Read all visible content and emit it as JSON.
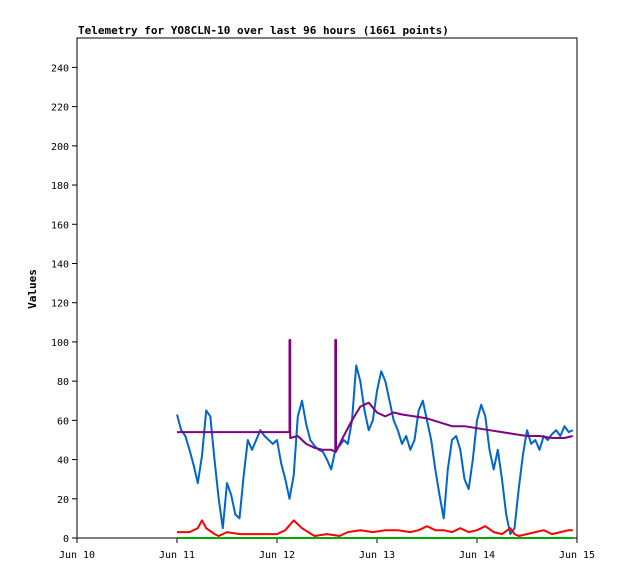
{
  "chart_data": {
    "type": "line",
    "title": "Telemetry for YO8CLN-10 over last 96 hours (1661 points)",
    "xlabel": "",
    "ylabel": "Values",
    "xlim": [
      "2024-06-10",
      "2024-06-15"
    ],
    "ylim": [
      0,
      255
    ],
    "x_ticks": [
      "Jun 10",
      "Jun 11",
      "Jun 12",
      "Jun 13",
      "Jun 14",
      "Jun 15"
    ],
    "y_ticks": [
      0,
      20,
      40,
      60,
      80,
      100,
      120,
      140,
      160,
      180,
      200,
      220,
      240
    ],
    "grid": false,
    "legend": "none",
    "series": [
      {
        "color": "#0066cc",
        "points": [
          [
            "2024-06-11T00:00",
            63
          ],
          [
            "2024-06-11T01:00",
            55
          ],
          [
            "2024-06-11T02:00",
            52
          ],
          [
            "2024-06-11T03:00",
            45
          ],
          [
            "2024-06-11T04:00",
            37
          ],
          [
            "2024-06-11T05:00",
            28
          ],
          [
            "2024-06-11T06:00",
            42
          ],
          [
            "2024-06-11T07:00",
            65
          ],
          [
            "2024-06-11T08:00",
            62
          ],
          [
            "2024-06-11T09:00",
            40
          ],
          [
            "2024-06-11T10:00",
            20
          ],
          [
            "2024-06-11T11:00",
            5
          ],
          [
            "2024-06-11T12:00",
            28
          ],
          [
            "2024-06-11T13:00",
            22
          ],
          [
            "2024-06-11T14:00",
            12
          ],
          [
            "2024-06-11T15:00",
            10
          ],
          [
            "2024-06-11T16:00",
            32
          ],
          [
            "2024-06-11T17:00",
            50
          ],
          [
            "2024-06-11T18:00",
            45
          ],
          [
            "2024-06-11T19:00",
            50
          ],
          [
            "2024-06-11T20:00",
            55
          ],
          [
            "2024-06-11T21:00",
            52
          ],
          [
            "2024-06-11T22:00",
            50
          ],
          [
            "2024-06-11T23:00",
            48
          ],
          [
            "2024-06-12T00:00",
            50
          ],
          [
            "2024-06-12T01:00",
            38
          ],
          [
            "2024-06-12T02:00",
            30
          ],
          [
            "2024-06-12T03:00",
            20
          ],
          [
            "2024-06-12T04:00",
            32
          ],
          [
            "2024-06-12T05:00",
            62
          ],
          [
            "2024-06-12T06:00",
            70
          ],
          [
            "2024-06-12T07:00",
            58
          ],
          [
            "2024-06-12T08:00",
            50
          ],
          [
            "2024-06-12T09:00",
            47
          ],
          [
            "2024-06-12T10:00",
            45
          ],
          [
            "2024-06-12T11:00",
            44
          ],
          [
            "2024-06-12T12:00",
            40
          ],
          [
            "2024-06-12T13:00",
            35
          ],
          [
            "2024-06-12T14:00",
            45
          ],
          [
            "2024-06-12T15:00",
            47
          ],
          [
            "2024-06-12T16:00",
            50
          ],
          [
            "2024-06-12T17:00",
            48
          ],
          [
            "2024-06-12T18:00",
            60
          ],
          [
            "2024-06-12T19:00",
            88
          ],
          [
            "2024-06-12T20:00",
            80
          ],
          [
            "2024-06-12T21:00",
            65
          ],
          [
            "2024-06-12T22:00",
            55
          ],
          [
            "2024-06-12T23:00",
            60
          ],
          [
            "2024-06-13T00:00",
            75
          ],
          [
            "2024-06-13T01:00",
            85
          ],
          [
            "2024-06-13T02:00",
            80
          ],
          [
            "2024-06-13T03:00",
            70
          ],
          [
            "2024-06-13T04:00",
            60
          ],
          [
            "2024-06-13T05:00",
            55
          ],
          [
            "2024-06-13T06:00",
            48
          ],
          [
            "2024-06-13T07:00",
            52
          ],
          [
            "2024-06-13T08:00",
            45
          ],
          [
            "2024-06-13T09:00",
            50
          ],
          [
            "2024-06-13T10:00",
            65
          ],
          [
            "2024-06-13T11:00",
            70
          ],
          [
            "2024-06-13T12:00",
            60
          ],
          [
            "2024-06-13T13:00",
            50
          ],
          [
            "2024-06-13T14:00",
            35
          ],
          [
            "2024-06-13T15:00",
            22
          ],
          [
            "2024-06-13T16:00",
            10
          ],
          [
            "2024-06-13T17:00",
            35
          ],
          [
            "2024-06-13T18:00",
            50
          ],
          [
            "2024-06-13T19:00",
            52
          ],
          [
            "2024-06-13T20:00",
            45
          ],
          [
            "2024-06-13T21:00",
            30
          ],
          [
            "2024-06-13T22:00",
            25
          ],
          [
            "2024-06-13T23:00",
            40
          ],
          [
            "2024-06-14T00:00",
            60
          ],
          [
            "2024-06-14T01:00",
            68
          ],
          [
            "2024-06-14T02:00",
            62
          ],
          [
            "2024-06-14T03:00",
            45
          ],
          [
            "2024-06-14T04:00",
            35
          ],
          [
            "2024-06-14T05:00",
            45
          ],
          [
            "2024-06-14T06:00",
            30
          ],
          [
            "2024-06-14T07:00",
            12
          ],
          [
            "2024-06-14T08:00",
            2
          ],
          [
            "2024-06-14T09:00",
            5
          ],
          [
            "2024-06-14T10:00",
            25
          ],
          [
            "2024-06-14T11:00",
            42
          ],
          [
            "2024-06-14T12:00",
            55
          ],
          [
            "2024-06-14T13:00",
            48
          ],
          [
            "2024-06-14T14:00",
            50
          ],
          [
            "2024-06-14T15:00",
            45
          ],
          [
            "2024-06-14T16:00",
            52
          ],
          [
            "2024-06-14T17:00",
            50
          ],
          [
            "2024-06-14T18:00",
            53
          ],
          [
            "2024-06-14T19:00",
            55
          ],
          [
            "2024-06-14T20:00",
            52
          ],
          [
            "2024-06-14T21:00",
            57
          ],
          [
            "2024-06-14T22:00",
            54
          ],
          [
            "2024-06-14T23:00",
            55
          ]
        ]
      },
      {
        "color": "#800080",
        "points": [
          [
            "2024-06-11T00:00",
            54
          ],
          [
            "2024-06-12T03:00",
            54
          ],
          [
            "2024-06-12T03:00",
            101
          ],
          [
            "2024-06-12T03:10",
            101
          ],
          [
            "2024-06-12T03:10",
            51
          ],
          [
            "2024-06-12T05:00",
            52
          ],
          [
            "2024-06-12T07:00",
            48
          ],
          [
            "2024-06-12T09:00",
            46
          ],
          [
            "2024-06-12T11:00",
            45
          ],
          [
            "2024-06-12T13:00",
            45
          ],
          [
            "2024-06-12T14:00",
            44
          ],
          [
            "2024-06-12T14:00",
            101
          ],
          [
            "2024-06-12T14:10",
            101
          ],
          [
            "2024-06-12T14:10",
            44
          ],
          [
            "2024-06-12T16:00",
            52
          ],
          [
            "2024-06-12T18:00",
            60
          ],
          [
            "2024-06-12T20:00",
            67
          ],
          [
            "2024-06-12T22:00",
            69
          ],
          [
            "2024-06-13T00:00",
            64
          ],
          [
            "2024-06-13T02:00",
            62
          ],
          [
            "2024-06-13T04:00",
            64
          ],
          [
            "2024-06-13T06:00",
            63
          ],
          [
            "2024-06-13T09:00",
            62
          ],
          [
            "2024-06-13T12:00",
            61
          ],
          [
            "2024-06-13T15:00",
            59
          ],
          [
            "2024-06-13T18:00",
            57
          ],
          [
            "2024-06-13T21:00",
            57
          ],
          [
            "2024-06-14T00:00",
            56
          ],
          [
            "2024-06-14T03:00",
            55
          ],
          [
            "2024-06-14T06:00",
            54
          ],
          [
            "2024-06-14T09:00",
            53
          ],
          [
            "2024-06-14T12:00",
            52
          ],
          [
            "2024-06-14T15:00",
            52
          ],
          [
            "2024-06-14T18:00",
            51
          ],
          [
            "2024-06-14T21:00",
            51
          ],
          [
            "2024-06-14T23:00",
            52
          ]
        ]
      },
      {
        "color": "#ff0000",
        "points": [
          [
            "2024-06-11T00:00",
            3
          ],
          [
            "2024-06-11T03:00",
            3
          ],
          [
            "2024-06-11T05:00",
            5
          ],
          [
            "2024-06-11T06:00",
            9
          ],
          [
            "2024-06-11T07:00",
            5
          ],
          [
            "2024-06-11T09:00",
            2
          ],
          [
            "2024-06-11T10:00",
            1
          ],
          [
            "2024-06-11T12:00",
            3
          ],
          [
            "2024-06-11T15:00",
            2
          ],
          [
            "2024-06-11T18:00",
            2
          ],
          [
            "2024-06-11T21:00",
            2
          ],
          [
            "2024-06-12T00:00",
            2
          ],
          [
            "2024-06-12T02:00",
            4
          ],
          [
            "2024-06-12T04:00",
            9
          ],
          [
            "2024-06-12T06:00",
            5
          ],
          [
            "2024-06-12T09:00",
            1
          ],
          [
            "2024-06-12T12:00",
            2
          ],
          [
            "2024-06-12T15:00",
            1
          ],
          [
            "2024-06-12T17:00",
            3
          ],
          [
            "2024-06-12T20:00",
            4
          ],
          [
            "2024-06-12T23:00",
            3
          ],
          [
            "2024-06-13T02:00",
            4
          ],
          [
            "2024-06-13T05:00",
            4
          ],
          [
            "2024-06-13T08:00",
            3
          ],
          [
            "2024-06-13T10:00",
            4
          ],
          [
            "2024-06-13T12:00",
            6
          ],
          [
            "2024-06-13T14:00",
            4
          ],
          [
            "2024-06-13T16:00",
            4
          ],
          [
            "2024-06-13T18:00",
            3
          ],
          [
            "2024-06-13T20:00",
            5
          ],
          [
            "2024-06-13T22:00",
            3
          ],
          [
            "2024-06-14T00:00",
            4
          ],
          [
            "2024-06-14T02:00",
            6
          ],
          [
            "2024-06-14T04:00",
            3
          ],
          [
            "2024-06-14T06:00",
            2
          ],
          [
            "2024-06-14T08:00",
            5
          ],
          [
            "2024-06-14T09:00",
            2
          ],
          [
            "2024-06-14T10:00",
            1
          ],
          [
            "2024-06-14T12:00",
            2
          ],
          [
            "2024-06-14T14:00",
            3
          ],
          [
            "2024-06-14T16:00",
            4
          ],
          [
            "2024-06-14T18:00",
            2
          ],
          [
            "2024-06-14T20:00",
            3
          ],
          [
            "2024-06-14T22:00",
            4
          ],
          [
            "2024-06-14T23:00",
            4
          ]
        ]
      },
      {
        "color": "#00aa00",
        "points": [
          [
            "2024-06-11T00:00",
            0
          ],
          [
            "2024-06-14T23:00",
            0
          ]
        ]
      }
    ]
  }
}
